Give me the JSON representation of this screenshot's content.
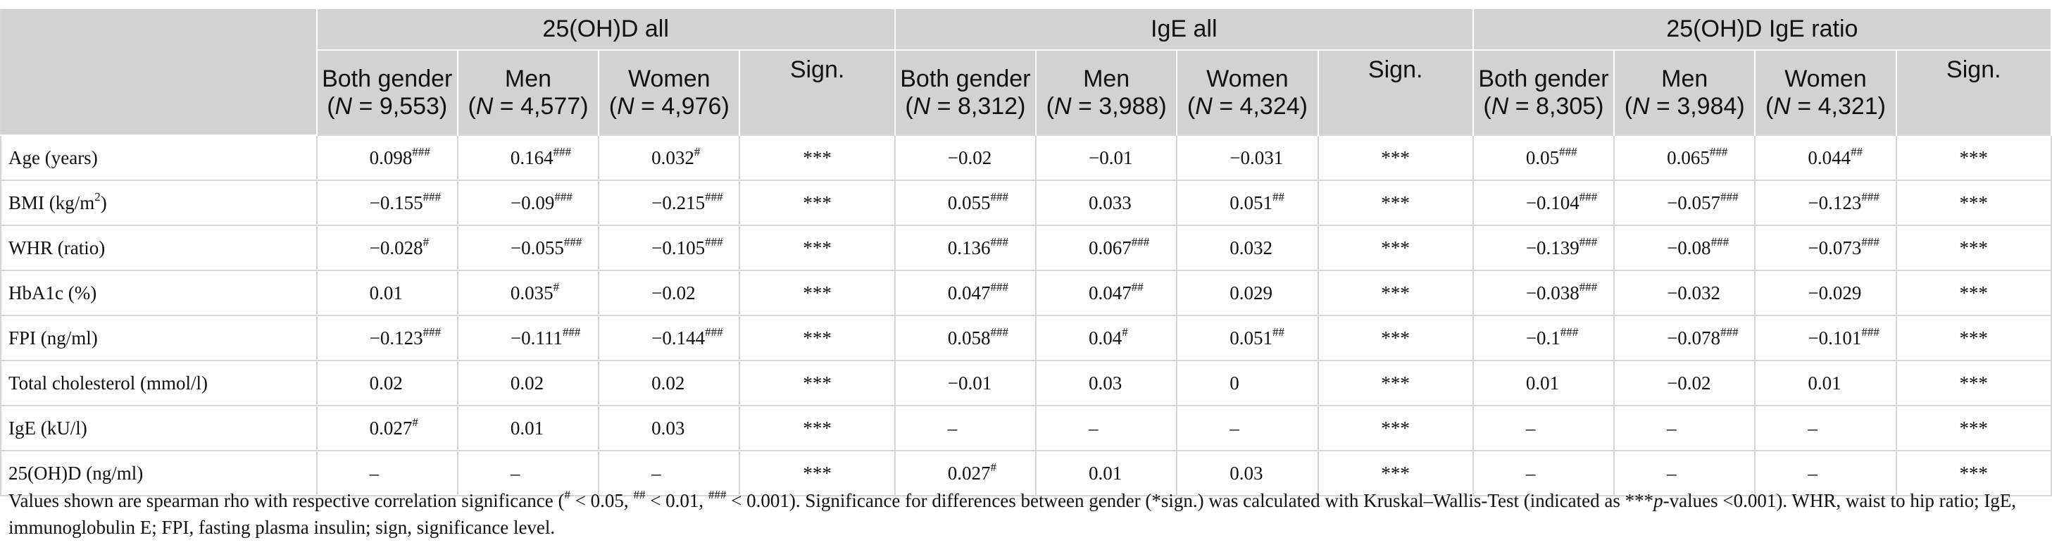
{
  "groups": [
    "25(OH)D all",
    "IgE all",
    "25(OH)D IgE ratio"
  ],
  "sub_headers": [
    {
      "l1": "Both gender",
      "n": "N",
      "rest": " = 9,553)"
    },
    {
      "l1": "Men",
      "n": "N",
      "rest": " = 4,577)"
    },
    {
      "l1": "Women",
      "n": "N",
      "rest": " = 4,976)"
    },
    {
      "l1": "Sign.",
      "n": "",
      "rest": ""
    },
    {
      "l1": "Both gender",
      "n": "N",
      "rest": " = 8,312)"
    },
    {
      "l1": "Men",
      "n": "N",
      "rest": " = 3,988)"
    },
    {
      "l1": "Women",
      "n": "N",
      "rest": " = 4,324)"
    },
    {
      "l1": "Sign.",
      "n": "",
      "rest": ""
    },
    {
      "l1": "Both gender",
      "n": "N",
      "rest": " = 8,305)"
    },
    {
      "l1": "Men",
      "n": "N",
      "rest": " = 3,984)"
    },
    {
      "l1": "Women",
      "n": "N",
      "rest": " = 4,321)"
    },
    {
      "l1": "Sign.",
      "n": "",
      "rest": ""
    }
  ],
  "rows": [
    {
      "label": "Age (years)",
      "cells": [
        [
          "0.098",
          "###"
        ],
        [
          "0.164",
          "###"
        ],
        [
          "0.032",
          "#"
        ],
        [
          "***",
          ""
        ],
        [
          "−0.02",
          ""
        ],
        [
          "−0.01",
          ""
        ],
        [
          "−0.031",
          ""
        ],
        [
          "***",
          ""
        ],
        [
          "0.05",
          "###"
        ],
        [
          "0.065",
          "###"
        ],
        [
          "0.044",
          "##"
        ],
        [
          "***",
          ""
        ]
      ]
    },
    {
      "label": "BMI (kg/m",
      "label_sup": "2",
      "label_end": ")",
      "cells": [
        [
          "−0.155",
          "###"
        ],
        [
          "−0.09",
          "###"
        ],
        [
          "−0.215",
          "###"
        ],
        [
          "***",
          ""
        ],
        [
          "0.055",
          "###"
        ],
        [
          "0.033",
          ""
        ],
        [
          "0.051",
          "##"
        ],
        [
          "***",
          ""
        ],
        [
          "−0.104",
          "###"
        ],
        [
          "−0.057",
          "###"
        ],
        [
          "−0.123",
          "###"
        ],
        [
          "***",
          ""
        ]
      ]
    },
    {
      "label": "WHR (ratio)",
      "cells": [
        [
          "−0.028",
          "#"
        ],
        [
          "−0.055",
          "###"
        ],
        [
          "−0.105",
          "###"
        ],
        [
          "***",
          ""
        ],
        [
          "0.136",
          "###"
        ],
        [
          "0.067",
          "###"
        ],
        [
          "0.032",
          ""
        ],
        [
          "***",
          ""
        ],
        [
          "−0.139",
          "###"
        ],
        [
          "−0.08",
          "###"
        ],
        [
          "−0.073",
          "###"
        ],
        [
          "***",
          ""
        ]
      ]
    },
    {
      "label": "HbA1c (%)",
      "cells": [
        [
          "0.01",
          ""
        ],
        [
          "0.035",
          "#"
        ],
        [
          "−0.02",
          ""
        ],
        [
          "***",
          ""
        ],
        [
          "0.047",
          "###"
        ],
        [
          "0.047",
          "##"
        ],
        [
          "0.029",
          ""
        ],
        [
          "***",
          ""
        ],
        [
          "−0.038",
          "###"
        ],
        [
          "−0.032",
          ""
        ],
        [
          "−0.029",
          ""
        ],
        [
          "***",
          ""
        ]
      ]
    },
    {
      "label": "FPI (ng/ml)",
      "cells": [
        [
          "−0.123",
          "###"
        ],
        [
          "−0.111",
          "###"
        ],
        [
          "−0.144",
          "###"
        ],
        [
          "***",
          ""
        ],
        [
          "0.058",
          "###"
        ],
        [
          "0.04",
          "#"
        ],
        [
          "0.051",
          "##"
        ],
        [
          "***",
          ""
        ],
        [
          "−0.1",
          "###"
        ],
        [
          "−0.078",
          "###"
        ],
        [
          "−0.101",
          "###"
        ],
        [
          "***",
          ""
        ]
      ]
    },
    {
      "label": "Total cholesterol (mmol/l)",
      "cells": [
        [
          "0.02",
          ""
        ],
        [
          "0.02",
          ""
        ],
        [
          "0.02",
          ""
        ],
        [
          "***",
          ""
        ],
        [
          "−0.01",
          ""
        ],
        [
          "0.03",
          ""
        ],
        [
          "0",
          ""
        ],
        [
          "***",
          ""
        ],
        [
          "0.01",
          ""
        ],
        [
          "−0.02",
          ""
        ],
        [
          "0.01",
          ""
        ],
        [
          "***",
          ""
        ]
      ]
    },
    {
      "label": "IgE (kU/l)",
      "cells": [
        [
          "0.027",
          "#"
        ],
        [
          "0.01",
          ""
        ],
        [
          "0.03",
          ""
        ],
        [
          "***",
          ""
        ],
        [
          "–",
          ""
        ],
        [
          "–",
          ""
        ],
        [
          "–",
          ""
        ],
        [
          "***",
          ""
        ],
        [
          "–",
          ""
        ],
        [
          "–",
          ""
        ],
        [
          "–",
          ""
        ],
        [
          "***",
          ""
        ]
      ]
    },
    {
      "label": "25(OH)D (ng/ml)",
      "cells": [
        [
          "–",
          ""
        ],
        [
          "–",
          ""
        ],
        [
          "–",
          ""
        ],
        [
          "***",
          ""
        ],
        [
          "0.027",
          "#"
        ],
        [
          "0.01",
          ""
        ],
        [
          "0.03",
          ""
        ],
        [
          "***",
          ""
        ],
        [
          "–",
          ""
        ],
        [
          "–",
          ""
        ],
        [
          "–",
          ""
        ],
        [
          "***",
          ""
        ]
      ]
    }
  ],
  "footnote": {
    "p1": "Values shown are spearman rho with respective correlation significance (",
    "s1": "#",
    "p2": " < 0.05, ",
    "s2": "##",
    "p3": " < 0.01, ",
    "s3": "###",
    "p4": " < 0.001). Significance for differences between gender (*sign.) was calculated with Kruskal–Wallis-Test (indicated as ***",
    "p_it": "p",
    "p5": "-values <0.001). WHR, waist to hip ratio; IgE, immunoglobulin E; FPI, fasting plasma insulin; sign, significance level."
  }
}
